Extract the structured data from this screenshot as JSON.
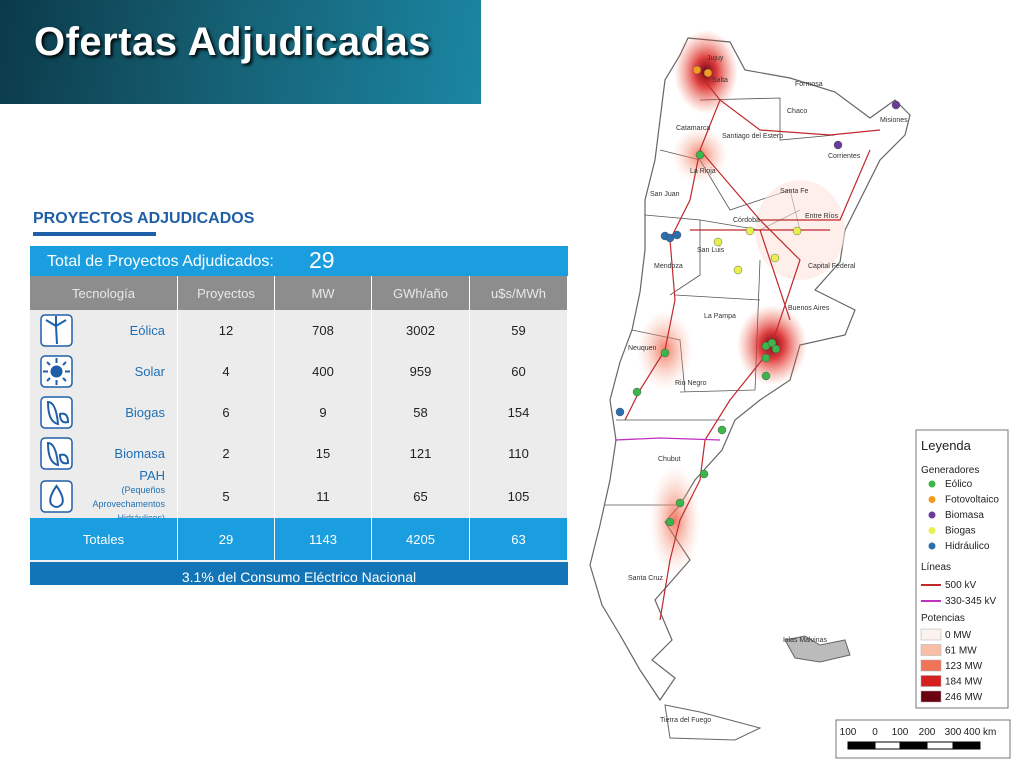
{
  "header": {
    "title": "Ofertas Adjudicadas"
  },
  "section": {
    "heading": "PROYECTOS ADJUDICADOS"
  },
  "table": {
    "total_label": "Total de Proyectos Adjudicados:",
    "total_value": 29,
    "columns": [
      "Tecnología",
      "Proyectos",
      "MW",
      "GWh/año",
      "u$s/MWh"
    ],
    "rows": [
      {
        "name": "Eólica",
        "values": [
          12,
          708,
          3002,
          59
        ]
      },
      {
        "name": "Solar",
        "values": [
          4,
          400,
          959,
          60
        ]
      },
      {
        "name": "Biogas",
        "values": [
          6,
          9,
          58,
          154
        ]
      },
      {
        "name": "Biomasa",
        "values": [
          2,
          15,
          121,
          110
        ]
      },
      {
        "name": "PAH",
        "note": "(Pequeños Aprovechamentos Hidráulicos)",
        "values": [
          5,
          11,
          65,
          105
        ]
      }
    ],
    "totals": {
      "name": "Totales",
      "values": [
        29,
        1143,
        4205,
        63
      ]
    },
    "footer": "3.1% del Consumo Eléctrico Nacional"
  },
  "map": {
    "labels": [
      "Jujuy",
      "Salta",
      "Formosa",
      "Chaco",
      "Misiones",
      "Catamarca",
      "Santiago del Estero",
      "Corrientes",
      "La Rioja",
      "San Juan",
      "Santa Fe",
      "Entre Ríos",
      "Córdoba",
      "San Luis",
      "Mendoza",
      "Capital Federal",
      "Buenos Aires",
      "La Pampa",
      "Neuquen",
      "Rio Negro",
      "Chubut",
      "Santa Cruz",
      "Islas Malvinas",
      "Tierra del Fuego"
    ],
    "legend": {
      "title": "Leyenda",
      "generators_title": "Generadores",
      "generators": [
        "Eólico",
        "Fotovoltaico",
        "Biomasa",
        "Biogas",
        "Hidráulico"
      ],
      "lines_title": "Líneas",
      "lines": [
        "500 kV",
        "330-345 kV"
      ],
      "power_title": "Potencias",
      "power": [
        "0 MW",
        "61 MW",
        "123 MW",
        "184 MW",
        "246 MW"
      ]
    },
    "scale": [
      "100",
      "0",
      "100",
      "200",
      "300",
      "400 km"
    ]
  }
}
